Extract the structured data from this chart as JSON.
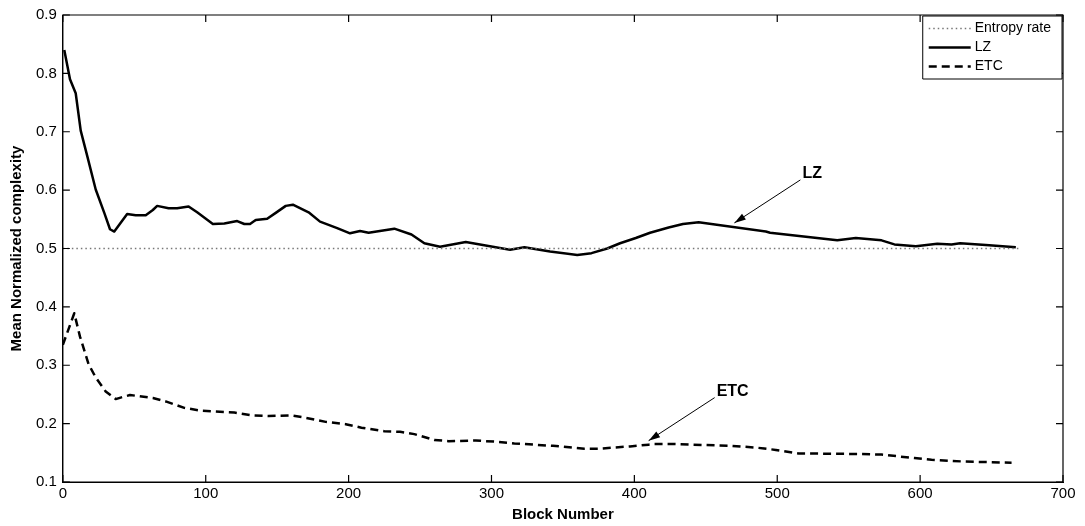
{
  "chart_data": {
    "type": "line",
    "xlabel": "Block Number",
    "ylabel": "Mean Normalized complexity",
    "xlim": [
      0,
      700
    ],
    "xticks": [
      0,
      100,
      200,
      300,
      400,
      500,
      600,
      700
    ],
    "ylim": [
      0.1,
      0.9
    ],
    "yticks": [
      0.1,
      0.2,
      0.3,
      0.4,
      0.5,
      0.6,
      0.7,
      0.8,
      0.9
    ],
    "grid": false,
    "legend": "top right",
    "marker": "none",
    "series": [
      {
        "name": "Entropy rate",
        "color": "#777777",
        "line_style": "dotted",
        "x": [
          0,
          670
        ],
        "values": [
          0.5,
          0.5
        ]
      },
      {
        "name": "LZ",
        "color": "#000000",
        "line_style": "solid",
        "x": [
          1,
          5,
          9,
          12.5,
          17,
          23,
          29,
          33,
          36,
          45,
          51,
          58,
          63,
          66,
          74,
          80,
          88,
          94,
          105,
          113,
          122,
          127,
          131,
          135,
          143,
          149,
          156,
          161,
          172,
          180,
          192,
          201,
          208,
          214,
          232,
          244,
          253,
          264,
          282,
          313,
          323,
          341,
          360,
          370,
          381,
          390,
          401,
          411,
          424,
          434,
          445,
          492,
          495,
          542,
          555,
          573,
          582,
          597,
          612,
          622,
          628,
          646,
          667
        ],
        "values": [
          0.84,
          0.79,
          0.766,
          0.702,
          0.659,
          0.601,
          0.561,
          0.533,
          0.529,
          0.559,
          0.557,
          0.557,
          0.566,
          0.573,
          0.569,
          0.569,
          0.572,
          0.562,
          0.542,
          0.543,
          0.547,
          0.542,
          0.542,
          0.549,
          0.551,
          0.561,
          0.573,
          0.575,
          0.562,
          0.546,
          0.535,
          0.526,
          0.53,
          0.527,
          0.534,
          0.524,
          0.509,
          0.503,
          0.511,
          0.498,
          0.502,
          0.495,
          0.489,
          0.492,
          0.5,
          0.509,
          0.518,
          0.527,
          0.536,
          0.542,
          0.545,
          0.529,
          0.527,
          0.514,
          0.518,
          0.514,
          0.507,
          0.504,
          0.508,
          0.507,
          0.509,
          0.506,
          0.502
        ]
      },
      {
        "name": "ETC",
        "color": "#000000",
        "line_style": "dashed",
        "x": [
          0,
          8,
          12,
          18,
          23,
          30,
          37,
          41,
          47,
          63,
          72,
          85,
          97,
          120,
          133,
          144,
          160,
          168,
          184,
          198,
          209,
          225,
          236,
          246,
          260,
          270,
          289,
          303,
          316,
          343,
          365,
          375,
          397,
          410,
          414,
          428,
          468,
          485,
          499,
          515,
          556,
          573,
          596,
          608,
          631,
          664
        ],
        "values": [
          0.335,
          0.389,
          0.349,
          0.302,
          0.279,
          0.255,
          0.242,
          0.245,
          0.249,
          0.244,
          0.238,
          0.227,
          0.222,
          0.219,
          0.214,
          0.213,
          0.214,
          0.211,
          0.203,
          0.199,
          0.193,
          0.187,
          0.186,
          0.182,
          0.172,
          0.17,
          0.171,
          0.169,
          0.166,
          0.162,
          0.157,
          0.157,
          0.161,
          0.164,
          0.165,
          0.165,
          0.162,
          0.159,
          0.155,
          0.149,
          0.148,
          0.147,
          0.141,
          0.138,
          0.135,
          0.133
        ]
      }
    ],
    "annotations": [
      {
        "text": "LZ",
        "x": 470,
        "y": 0.537
      },
      {
        "text": "ETC",
        "x": 410,
        "y": 0.164
      }
    ]
  }
}
